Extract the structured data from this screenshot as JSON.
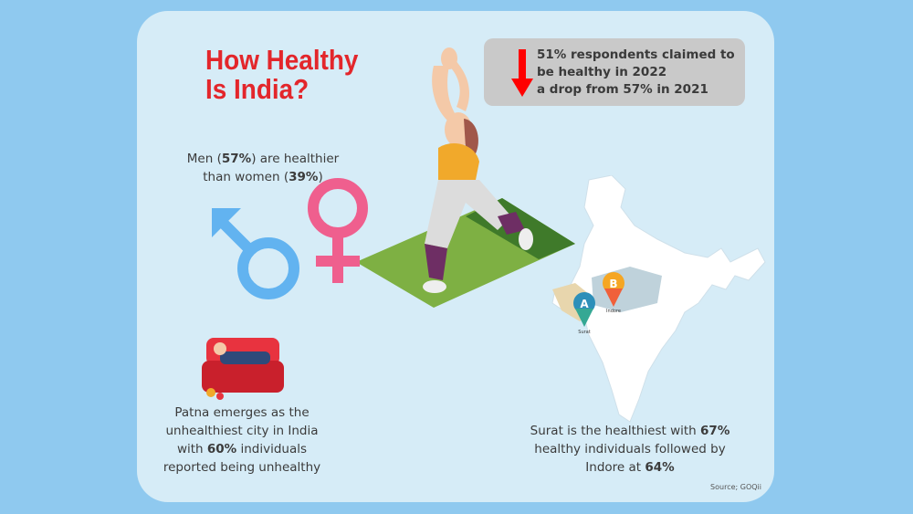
{
  "title": {
    "line1": "How Healthy",
    "line2": "Is India?"
  },
  "stat_box": {
    "text": "51% respondents claimed to\nbe healthy in 2022\na drop from 57% in 2021",
    "icon": "down-arrow-icon",
    "icon_color": "#ff0000"
  },
  "gender": {
    "pre": "Men (",
    "men_pct": "57%",
    "mid": ") are healthier",
    "line2_pre": "than women (",
    "women_pct": "39%",
    "post": ")",
    "male_color": "#62b3f0",
    "female_color": "#ef5f8e"
  },
  "patna": {
    "line1": "Patna emerges as the",
    "line2": "unhealthiest city in India",
    "line3_pre": "with ",
    "pct": "60%",
    "line3_post": " individuals",
    "line4": "reported being unhealthy"
  },
  "map": {
    "pin_a": "A",
    "pin_a_city": "Surat",
    "pin_b": "B",
    "pin_b_city": "Indore"
  },
  "surat": {
    "pre": "Surat is the healthiest with ",
    "pct1": "67%",
    "line2": "healthy individuals followed by",
    "line3_pre": "Indore at ",
    "pct2": "64%"
  },
  "source": "Source; GOQii",
  "colors": {
    "title": "#e3262b",
    "background": "#d6ecf7",
    "outer": "#8fc9ef"
  }
}
